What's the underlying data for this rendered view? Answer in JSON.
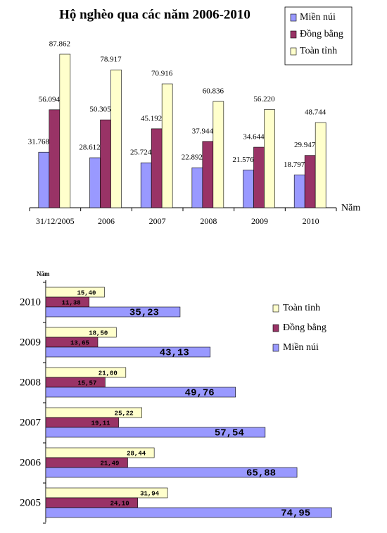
{
  "chart_data": [
    {
      "type": "bar",
      "title": "Hộ nghèo qua các năm 2006-2010",
      "x_label": "Năm",
      "categories": [
        "31/12/2005",
        "2006",
        "2007",
        "2008",
        "2009",
        "2010"
      ],
      "series": [
        {
          "name": "Miền núi",
          "color": "#9999ff",
          "values": [
            31.768,
            28.612,
            25.724,
            22.892,
            21.576,
            18.797
          ],
          "value_labels": [
            "31.768",
            "28.612",
            "25.724",
            "22.892",
            "21.576",
            "18.797"
          ]
        },
        {
          "name": "Đồng bằng",
          "color": "#993366",
          "values": [
            56.094,
            50.305,
            45.192,
            37.944,
            34.644,
            29.947
          ],
          "value_labels": [
            "56.094",
            "50.305",
            "45.192",
            "37.944",
            "34.644",
            "29.947"
          ]
        },
        {
          "name": "Toàn tỉnh",
          "color": "#ffffcc",
          "values": [
            87.862,
            78.917,
            70.916,
            60.836,
            56.22,
            48.744
          ],
          "value_labels": [
            "87.862",
            "78.917",
            "70.916",
            "60.836",
            "56.220",
            "48.744"
          ]
        }
      ]
    },
    {
      "type": "hbar",
      "y_label": "Năm",
      "categories": [
        "2010",
        "2009",
        "2008",
        "2007",
        "2006",
        "2005"
      ],
      "series": [
        {
          "name": "Toàn tinh",
          "color": "#ffffcc",
          "values": [
            15.4,
            18.5,
            21.0,
            25.22,
            28.44,
            31.94
          ],
          "value_labels": [
            "15,40",
            "18,50",
            "21,00",
            "25,22",
            "28,44",
            "31,94"
          ]
        },
        {
          "name": "Đồng bằng",
          "color": "#993366",
          "values": [
            11.38,
            13.65,
            15.57,
            19.11,
            21.49,
            24.1
          ],
          "value_labels": [
            "11,38",
            "13,65",
            "15,57",
            "19,11",
            "21,49",
            "24,10"
          ]
        },
        {
          "name": "Miền núi",
          "color": "#9999ff",
          "values": [
            35.23,
            43.13,
            49.76,
            57.54,
            65.88,
            74.95
          ],
          "value_labels": [
            "35,23",
            "43,13",
            "49,76",
            "57,54",
            "65,88",
            "74,95"
          ]
        }
      ]
    }
  ]
}
